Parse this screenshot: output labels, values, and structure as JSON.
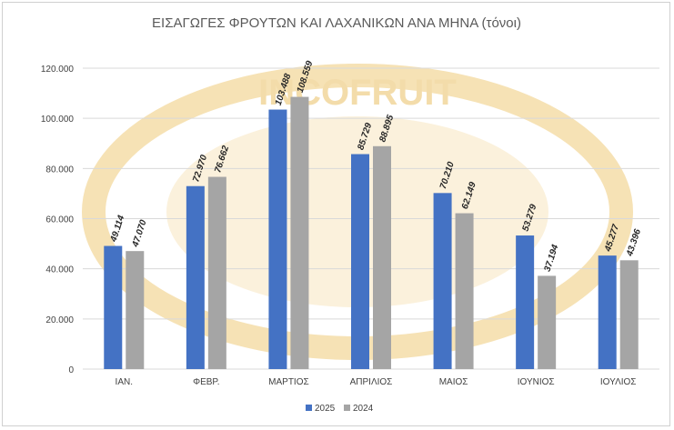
{
  "chart_data": {
    "type": "bar",
    "title": "ΕΙΣΑΓΩΓΕΣ ΦΡΟΥΤΩΝ ΚΑΙ ΛΑΧΑΝΙΚΩΝ ΑΝΑ ΜΗΝΑ (τόνοι)",
    "categories": [
      "ΙΑΝ.",
      "ΦΕΒΡ.",
      "ΜΑΡΤΙΟΣ",
      "ΑΠΡΙΛΙΟΣ",
      "ΜΑΙΟΣ",
      "ΙΟΥΝΙΟΣ",
      "ΙΟΥΛΙΟΣ"
    ],
    "series": [
      {
        "name": "2025",
        "color": "#4472c4",
        "values": [
          49114,
          72970,
          103488,
          85729,
          70210,
          53279,
          45277
        ],
        "labels": [
          "49.114",
          "72.970",
          "103.488",
          "85.729",
          "70.210",
          "53.279",
          "45.277"
        ]
      },
      {
        "name": "2024",
        "color": "#a5a5a5",
        "values": [
          47070,
          76662,
          108559,
          88895,
          62149,
          37194,
          43396
        ],
        "labels": [
          "47.070",
          "76.662",
          "108.559",
          "88.895",
          "62.149",
          "37.194",
          "43.396"
        ]
      }
    ],
    "ylim": [
      0,
      120000
    ],
    "yticks": [
      {
        "value": 0,
        "label": "0"
      },
      {
        "value": 20000,
        "label": "20.000"
      },
      {
        "value": 40000,
        "label": "40.000"
      },
      {
        "value": 60000,
        "label": "60.000"
      },
      {
        "value": 80000,
        "label": "80.000"
      },
      {
        "value": 100000,
        "label": "100.000"
      },
      {
        "value": 120000,
        "label": "120.000"
      }
    ],
    "grid": true,
    "legend_position": "bottom",
    "watermark_text": "INCOFRUIT - HELLAS 1934"
  }
}
